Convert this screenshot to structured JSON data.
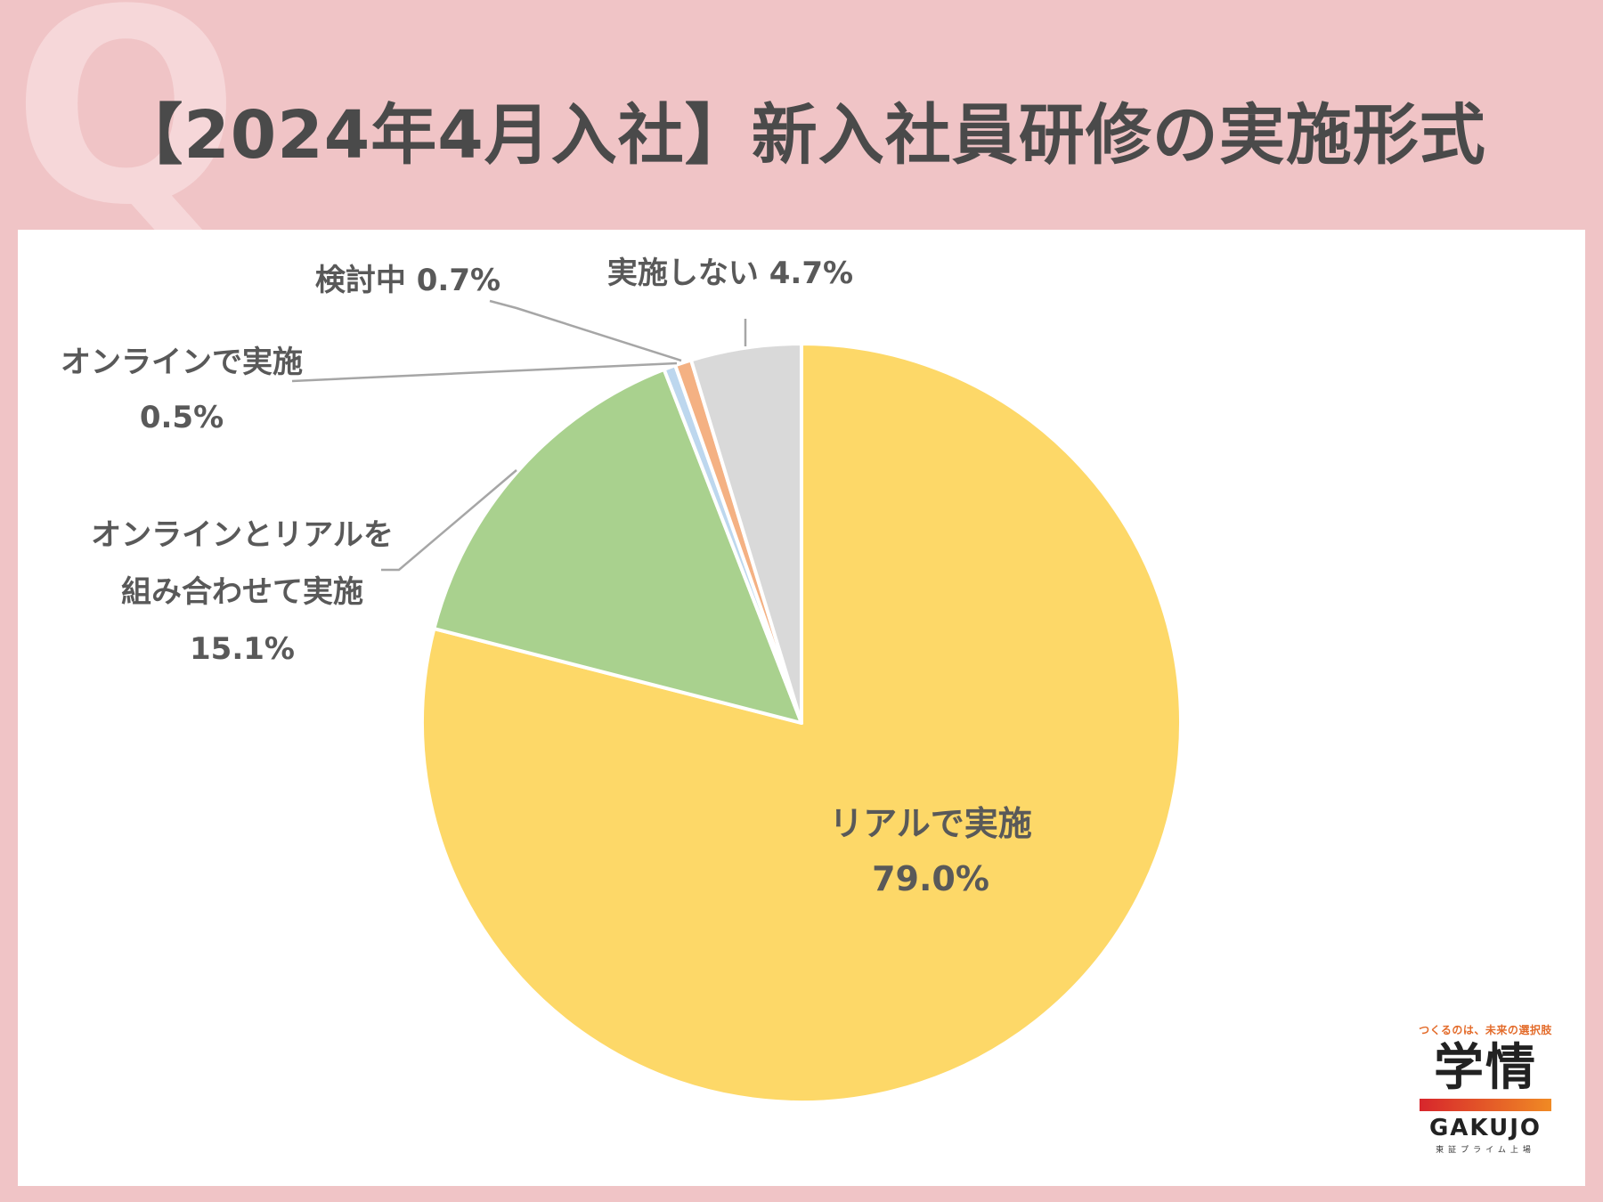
{
  "header": {
    "bg_letter": "Q",
    "title": "【2024年4月入社】新入社員研修の実施形式"
  },
  "chart_data": {
    "type": "pie",
    "title": "【2024年4月入社】新入社員研修の実施形式",
    "slices": [
      {
        "name": "リアルで実施",
        "value": 79.0,
        "label": "79.0%",
        "color": "#fdd868"
      },
      {
        "name": "オンラインとリアルを組み合わせて実施",
        "value": 15.1,
        "label": "15.1%",
        "color": "#a9d18e"
      },
      {
        "name": "オンラインで実施",
        "value": 0.5,
        "label": "0.5%",
        "color": "#bdd7ee"
      },
      {
        "name": "検討中",
        "value": 0.7,
        "label": "0.7%",
        "color": "#f4b183"
      },
      {
        "name": "実施しない",
        "value": 4.7,
        "label": "4.7%",
        "color": "#d9d9d9"
      }
    ],
    "start": "12 o'clock",
    "direction": "clockwise",
    "labels": {
      "real_name": "リアルで実施",
      "real_pct": "79.0%",
      "combo_line1": "オンラインとリアルを",
      "combo_line2": "組み合わせて実施",
      "combo_pct": "15.1%",
      "online_name": "オンラインで実施",
      "online_pct": "0.5%",
      "kentou": "検討中 0.7%",
      "shinai": "実施しない 4.7%"
    }
  },
  "logo": {
    "tagline": "つくるのは、未来の選択肢",
    "mark": "学情",
    "brand": "GAKUJO",
    "sub": "東証プライム上場"
  }
}
